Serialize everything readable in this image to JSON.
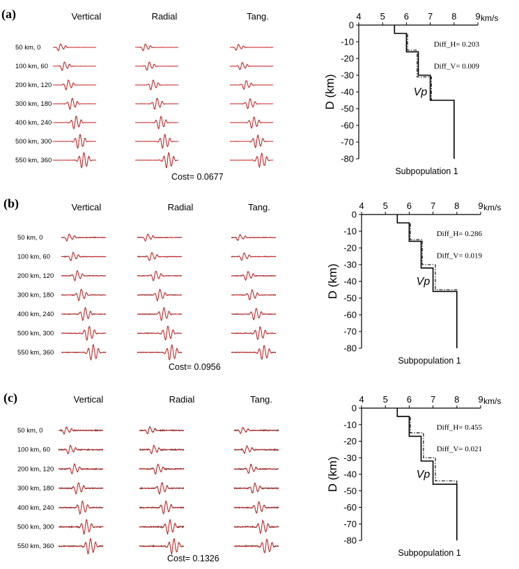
{
  "panels": [
    {
      "label": "(a)",
      "components": [
        "Vertical",
        "Radial",
        "Tang."
      ],
      "stations": [
        "50 km, 0",
        "100 km, 60",
        "200 km, 120",
        "300 km, 180",
        "400 km, 240",
        "500 km, 300",
        "550 km, 360"
      ],
      "cost": "Cost= 0.0677",
      "diff_h": "Diff_H= 0.203",
      "diff_v": "Diff_V= 0.009",
      "subtitle": "Subpopulation 1"
    },
    {
      "label": "(b)",
      "components": [
        "Vertical",
        "Radial",
        "Tang."
      ],
      "stations": [
        "50 km, 0",
        "100 km, 60",
        "200 km, 120",
        "300 km, 180",
        "400 km, 240",
        "500 km, 300",
        "550 km, 360"
      ],
      "cost": "Cost= 0.0956",
      "diff_h": "Diff_H= 0.286",
      "diff_v": "Diff_V= 0.019",
      "subtitle": "Subpopulation 1"
    },
    {
      "label": "(c)",
      "components": [
        "Vertical",
        "Radial",
        "Tang."
      ],
      "stations": [
        "50 km, 0",
        "100 km, 60",
        "200 km, 120",
        "300 km, 180",
        "400 km, 240",
        "500 km, 300",
        "550 km, 360"
      ],
      "cost": "Cost= 0.1326",
      "diff_h": "Diff_H= 0.455",
      "diff_v": "Diff_V= 0.021",
      "subtitle": "Subpopulation 1"
    }
  ],
  "colors": {
    "synthetic": "#d62828",
    "observed": "#333333",
    "axis": "#000000"
  },
  "chart_data": [
    {
      "type": "line",
      "panel": "(a)",
      "x_unit": "km/s",
      "ylabel": "D (km)",
      "series_label": "Vp",
      "xlim": [
        4,
        9
      ],
      "ylim": [
        0,
        -80
      ],
      "xticks": [
        4,
        5,
        6,
        7,
        8,
        9
      ],
      "yticks": [
        0,
        -10,
        -20,
        -30,
        -40,
        -50,
        -60,
        -70,
        -80
      ],
      "series": [
        {
          "style": "solid",
          "x": [
            5.5,
            5.5,
            6.0,
            6.0,
            6.5,
            6.5,
            7.0,
            7.0,
            8.0,
            8.0
          ],
          "y": [
            0,
            -5,
            -5,
            -16,
            -16,
            -30,
            -30,
            -45,
            -45,
            -80
          ]
        },
        {
          "style": "dashdot",
          "x": [
            5.5,
            5.5,
            6.05,
            6.05,
            6.45,
            6.45,
            7.05,
            7.05,
            8.0,
            8.0
          ],
          "y": [
            0,
            -5,
            -5,
            -15,
            -15,
            -31,
            -31,
            -45,
            -45,
            -80
          ]
        }
      ]
    },
    {
      "type": "line",
      "panel": "(b)",
      "x_unit": "km/s",
      "ylabel": "D (km)",
      "series_label": "Vp",
      "xlim": [
        4,
        9
      ],
      "ylim": [
        0,
        -80
      ],
      "xticks": [
        4,
        5,
        6,
        7,
        8,
        9
      ],
      "yticks": [
        0,
        -10,
        -20,
        -30,
        -40,
        -50,
        -60,
        -70,
        -80
      ],
      "series": [
        {
          "style": "solid",
          "x": [
            5.5,
            5.5,
            6.0,
            6.0,
            6.5,
            6.5,
            7.0,
            7.0,
            8.0,
            8.0
          ],
          "y": [
            0,
            -5,
            -5,
            -16,
            -16,
            -32,
            -32,
            -46,
            -46,
            -80
          ]
        },
        {
          "style": "dashdot",
          "x": [
            5.5,
            5.5,
            6.05,
            6.05,
            6.55,
            6.55,
            7.1,
            7.1,
            8.0,
            8.0
          ],
          "y": [
            0,
            -5,
            -5,
            -15,
            -15,
            -30,
            -30,
            -45,
            -45,
            -80
          ]
        }
      ]
    },
    {
      "type": "line",
      "panel": "(c)",
      "x_unit": "km/s",
      "ylabel": "D (km)",
      "series_label": "Vp",
      "xlim": [
        4,
        9
      ],
      "ylim": [
        0,
        -80
      ],
      "xticks": [
        4,
        5,
        6,
        7,
        8,
        9
      ],
      "yticks": [
        0,
        -10,
        -20,
        -30,
        -40,
        -50,
        -60,
        -70,
        -80
      ],
      "series": [
        {
          "style": "solid",
          "x": [
            5.5,
            5.5,
            6.0,
            6.0,
            6.5,
            6.5,
            7.0,
            7.0,
            8.0,
            8.0
          ],
          "y": [
            0,
            -5,
            -5,
            -17,
            -17,
            -32,
            -32,
            -46,
            -46,
            -80
          ]
        },
        {
          "style": "dashdot",
          "x": [
            5.5,
            5.5,
            6.05,
            6.05,
            6.6,
            6.6,
            7.1,
            7.1,
            8.0,
            8.0
          ],
          "y": [
            0,
            -5,
            -5,
            -15,
            -15,
            -30,
            -30,
            -44,
            -44,
            -80
          ]
        }
      ]
    }
  ]
}
